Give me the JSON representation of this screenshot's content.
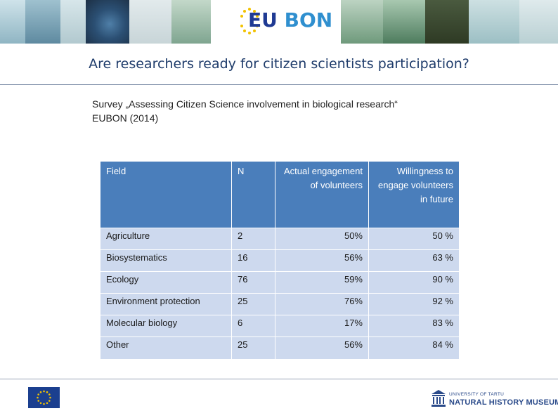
{
  "header": {
    "logo_text_eu": "EU",
    "logo_text_bon": "BON",
    "brand_colors": {
      "eu": "#1f3a93",
      "bon": "#2f8fcf",
      "stars": "#f2c200"
    }
  },
  "slide": {
    "title": "Are researchers ready for citizen scientists participation?",
    "subtitle_line1": "Survey „Assessing Citizen Science involvement in biological research“",
    "subtitle_line2": "EUBON (2014)"
  },
  "table": {
    "headers": {
      "field": "Field",
      "n": "N",
      "actual": "Actual engagement of volunteers",
      "willingness": "Willingness to engage volunteers in future"
    },
    "rows": [
      {
        "field": "Agriculture",
        "n": "2",
        "actual": "50%",
        "willingness": "50 %"
      },
      {
        "field": "Biosystematics",
        "n": "16",
        "actual": "56%",
        "willingness": "63 %"
      },
      {
        "field": "Ecology",
        "n": "76",
        "actual": "59%",
        "willingness": "90 %"
      },
      {
        "field": "Environment protection",
        "n": "25",
        "actual": "76%",
        "willingness": "92 %"
      },
      {
        "field": "Molecular biology",
        "n": "6",
        "actual": "17%",
        "willingness": "83 %"
      },
      {
        "field": "Other",
        "n": "25",
        "actual": "56%",
        "willingness": "84 %"
      }
    ],
    "colors": {
      "header_bg": "#4a7ebb",
      "row_bg": "#cdd9ee"
    }
  },
  "footer": {
    "eu_flag": "eu-flag-icon",
    "university_line1": "UNIVERSITY OF TARTU",
    "university_line2": "NATURAL HISTORY MUSEUM"
  }
}
